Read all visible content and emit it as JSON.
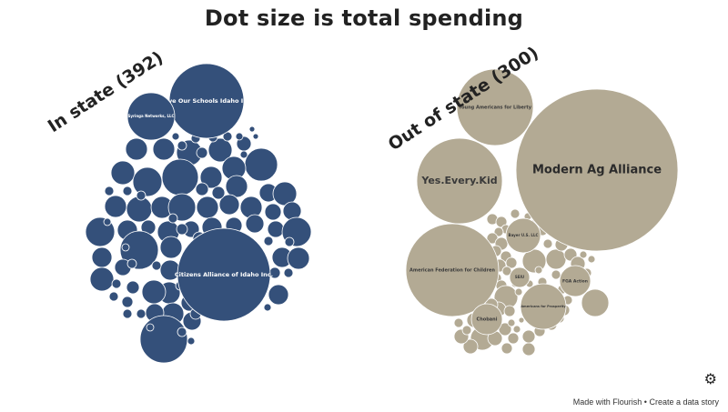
{
  "chart_data": {
    "type": "bubble",
    "title": "Dot size is total spending",
    "colors": {
      "in_state": "#34507a",
      "out_of_state": "#b3aa94"
    },
    "groups": [
      {
        "name": "In state (392)",
        "color": "#34507a",
        "labeled_bubbles": [
          {
            "name": "Save Our Schools Idaho Inc."
          },
          {
            "name": "Syringa Networks, LLC"
          },
          {
            "name": "Citizens Alliance of Idaho Inc."
          }
        ]
      },
      {
        "name": "Out of state (300)",
        "color": "#b3aa94",
        "labeled_bubbles": [
          {
            "name": "Modern Ag Alliance"
          },
          {
            "name": "Young Americans for Liberty"
          },
          {
            "name": "Yes.Every.Kid"
          },
          {
            "name": "American Federation for Children"
          },
          {
            "name": "Bayer U.S. LLC"
          },
          {
            "name": "FGA Action"
          },
          {
            "name": "SEIU"
          },
          {
            "name": "Americans for Prosperity"
          },
          {
            "name": "Chobani"
          }
        ]
      }
    ]
  },
  "footer": {
    "made_with": "Made with Flourish",
    "separator": " • ",
    "create_story": "Create a data story"
  },
  "icons": {
    "settings": "gear-icon"
  }
}
